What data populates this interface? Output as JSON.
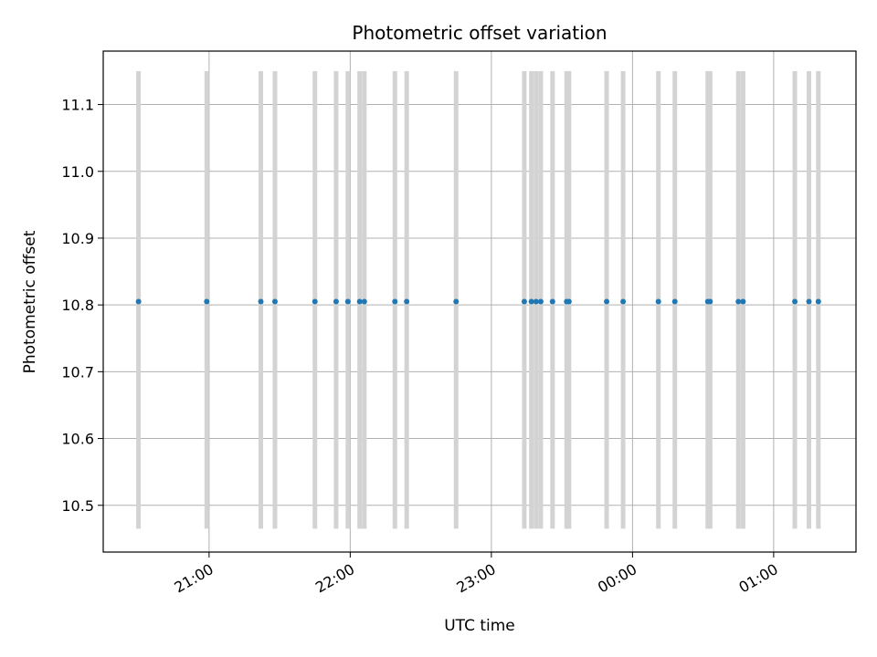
{
  "chart_data": {
    "type": "scatter",
    "title": "Photometric offset variation",
    "xlabel": "UTC time",
    "ylabel": "Photometric offset",
    "x_axis": "time",
    "xlim": [
      "20:15",
      "01:35"
    ],
    "ylim": [
      10.43,
      11.18
    ],
    "x_ticks": [
      {
        "label": "21:00",
        "time": "21:00"
      },
      {
        "label": "22:00",
        "time": "22:00"
      },
      {
        "label": "23:00",
        "time": "23:00"
      },
      {
        "label": "00:00",
        "time": "00:00"
      },
      {
        "label": "01:00",
        "time": "01:00"
      }
    ],
    "y_ticks": [
      "10.5",
      "10.6",
      "10.7",
      "10.8",
      "10.9",
      "11.0",
      "11.1"
    ],
    "grid": true,
    "colors": {
      "points": "#1f77b4",
      "spans": "#d3d3d3",
      "grid": "#b0b0b0"
    },
    "span_range": [
      10.465,
      11.15
    ],
    "series": [
      {
        "points": [
          {
            "x": "20:30",
            "y": 10.805
          },
          {
            "x": "20:59",
            "y": 10.805
          },
          {
            "x": "21:22",
            "y": 10.805
          },
          {
            "x": "21:28",
            "y": 10.805
          },
          {
            "x": "21:45",
            "y": 10.805
          },
          {
            "x": "21:54",
            "y": 10.805
          },
          {
            "x": "21:59",
            "y": 10.805
          },
          {
            "x": "22:04",
            "y": 10.805
          },
          {
            "x": "22:06",
            "y": 10.805
          },
          {
            "x": "22:19",
            "y": 10.805
          },
          {
            "x": "22:24",
            "y": 10.805
          },
          {
            "x": "22:45",
            "y": 10.805
          },
          {
            "x": "23:14",
            "y": 10.805
          },
          {
            "x": "23:17",
            "y": 10.805
          },
          {
            "x": "23:19",
            "y": 10.805
          },
          {
            "x": "23:21",
            "y": 10.805
          },
          {
            "x": "23:26",
            "y": 10.805
          },
          {
            "x": "23:32",
            "y": 10.805
          },
          {
            "x": "23:33",
            "y": 10.805
          },
          {
            "x": "23:49",
            "y": 10.805
          },
          {
            "x": "23:56",
            "y": 10.805
          },
          {
            "x": "00:11",
            "y": 10.805
          },
          {
            "x": "00:18",
            "y": 10.805
          },
          {
            "x": "00:32",
            "y": 10.805
          },
          {
            "x": "00:33",
            "y": 10.805
          },
          {
            "x": "00:45",
            "y": 10.805
          },
          {
            "x": "00:47",
            "y": 10.805
          },
          {
            "x": "01:09",
            "y": 10.805
          },
          {
            "x": "01:15",
            "y": 10.805
          },
          {
            "x": "01:19",
            "y": 10.805
          }
        ]
      }
    ]
  }
}
